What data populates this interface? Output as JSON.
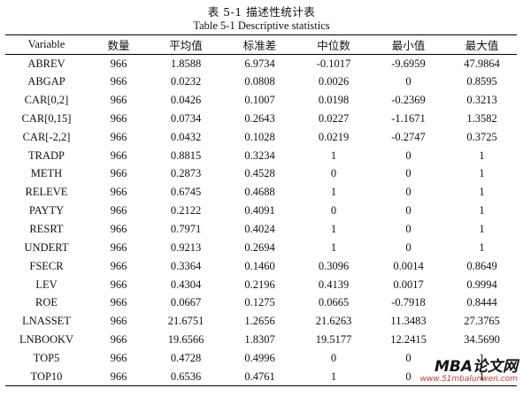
{
  "title_cn": "表 5-1  描述性统计表",
  "title_en": "Table 5-1 Descriptive statistics",
  "columns": [
    "Variable",
    "数量",
    "平均值",
    "标准差",
    "中位数",
    "最小值",
    "最大值"
  ],
  "rows": [
    [
      "ABREV",
      "966",
      "1.8588",
      "6.9734",
      "-0.1017",
      "-9.6959",
      "47.9864"
    ],
    [
      "ABGAP",
      "966",
      "0.0232",
      "0.0808",
      "0.0026",
      "0",
      "0.8595"
    ],
    [
      "CAR[0,2]",
      "966",
      "0.0426",
      "0.1007",
      "0.0198",
      "-0.2369",
      "0.3213"
    ],
    [
      "CAR[0,15]",
      "966",
      "0.0734",
      "0.2643",
      "0.0227",
      "-1.1671",
      "1.3582"
    ],
    [
      "CAR[-2,2]",
      "966",
      "0.0432",
      "0.1028",
      "0.0219",
      "-0.2747",
      "0.3725"
    ],
    [
      "TRADP",
      "966",
      "0.8815",
      "0.3234",
      "1",
      "0",
      "1"
    ],
    [
      "METH",
      "966",
      "0.2873",
      "0.4528",
      "0",
      "0",
      "1"
    ],
    [
      "RELEVE",
      "966",
      "0.6745",
      "0.4688",
      "1",
      "0",
      "1"
    ],
    [
      "PAYTY",
      "966",
      "0.2122",
      "0.4091",
      "0",
      "0",
      "1"
    ],
    [
      "RESRT",
      "966",
      "0.7971",
      "0.4024",
      "1",
      "0",
      "1"
    ],
    [
      "UNDERT",
      "966",
      "0.9213",
      "0.2694",
      "1",
      "0",
      "1"
    ],
    [
      "FSECR",
      "966",
      "0.3364",
      "0.1460",
      "0.3096",
      "0.0014",
      "0.8649"
    ],
    [
      "LEV",
      "966",
      "0.4304",
      "0.2196",
      "0.4139",
      "0.0017",
      "0.9994"
    ],
    [
      "ROE",
      "966",
      "0.0667",
      "0.1275",
      "0.0665",
      "-0.7918",
      "0.8444"
    ],
    [
      "LNASSET",
      "966",
      "21.6751",
      "1.2656",
      "21.6263",
      "11.3483",
      "27.3765"
    ],
    [
      "LNBOOKV",
      "966",
      "19.6566",
      "1.8307",
      "19.5177",
      "12.2415",
      "34.5690"
    ],
    [
      "TOP5",
      "966",
      "0.4728",
      "0.4996",
      "0",
      "0",
      "1"
    ],
    [
      "TOP10",
      "966",
      "0.6536",
      "0.4761",
      "1",
      "0",
      "1"
    ]
  ],
  "watermark": {
    "brand": "MBA论文网",
    "url": "www.51mbalunwen.com"
  }
}
